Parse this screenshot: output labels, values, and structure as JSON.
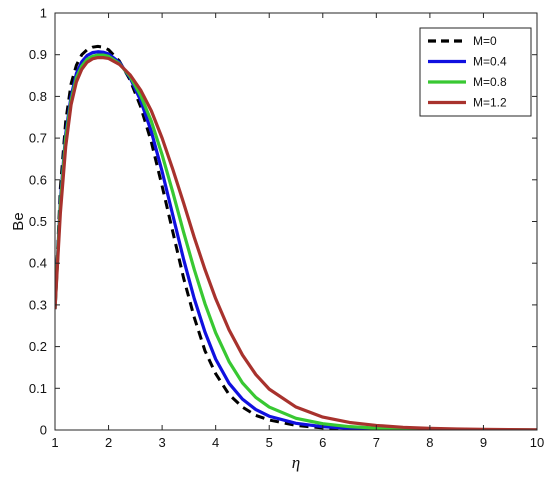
{
  "chart_data": {
    "type": "line",
    "title": "",
    "xlabel": "η",
    "ylabel": "Be",
    "xlim": [
      1,
      10
    ],
    "ylim": [
      0,
      1
    ],
    "xticks": [
      1,
      2,
      3,
      4,
      5,
      6,
      7,
      8,
      9,
      10
    ],
    "yticks": [
      0,
      0.1,
      0.2,
      0.3,
      0.4,
      0.5,
      0.6,
      0.7,
      0.8,
      0.9,
      1
    ],
    "ytick_labels": [
      "0",
      "0.1",
      "0.2",
      "0.3",
      "0.4",
      "0.5",
      "0.6",
      "0.7",
      "0.8",
      "0.9",
      "1"
    ],
    "grid": false,
    "legend_position": "top-right",
    "x": [
      1.0,
      1.1,
      1.2,
      1.3,
      1.4,
      1.5,
      1.6,
      1.7,
      1.8,
      1.9,
      2.0,
      2.2,
      2.4,
      2.6,
      2.8,
      3.0,
      3.2,
      3.4,
      3.6,
      3.8,
      4.0,
      4.25,
      4.5,
      4.75,
      5.0,
      5.5,
      6.0,
      6.5,
      7.0,
      7.5,
      8.0,
      8.5,
      9.0,
      9.5,
      10.0
    ],
    "series": [
      {
        "name": "M=0",
        "color": "#000000",
        "dash": "dashed",
        "values": [
          0.29,
          0.58,
          0.74,
          0.83,
          0.875,
          0.9,
          0.912,
          0.918,
          0.92,
          0.918,
          0.912,
          0.885,
          0.84,
          0.775,
          0.69,
          0.585,
          0.475,
          0.365,
          0.27,
          0.19,
          0.135,
          0.085,
          0.055,
          0.035,
          0.024,
          0.011,
          0.005,
          0.0025,
          0.0012,
          0.0006,
          0.0003,
          0.0002,
          0.0001,
          0.0,
          0.0
        ]
      },
      {
        "name": "M=0.4",
        "color": "#1010e0",
        "dash": "solid",
        "values": [
          0.29,
          0.55,
          0.71,
          0.8,
          0.855,
          0.883,
          0.898,
          0.905,
          0.907,
          0.906,
          0.902,
          0.882,
          0.845,
          0.79,
          0.715,
          0.62,
          0.515,
          0.41,
          0.315,
          0.235,
          0.17,
          0.112,
          0.074,
          0.049,
          0.033,
          0.016,
          0.008,
          0.004,
          0.002,
          0.001,
          0.0005,
          0.0003,
          0.0002,
          0.0001,
          0.0
        ]
      },
      {
        "name": "M=0.8",
        "color": "#38c832",
        "dash": "solid",
        "values": [
          0.29,
          0.54,
          0.7,
          0.79,
          0.845,
          0.873,
          0.889,
          0.896,
          0.899,
          0.899,
          0.896,
          0.879,
          0.848,
          0.802,
          0.74,
          0.66,
          0.57,
          0.475,
          0.385,
          0.303,
          0.233,
          0.164,
          0.113,
          0.078,
          0.055,
          0.028,
          0.015,
          0.008,
          0.0045,
          0.0025,
          0.0014,
          0.0008,
          0.0005,
          0.0003,
          0.0002
        ]
      },
      {
        "name": "M=1.2",
        "color": "#a8322d",
        "dash": "solid",
        "values": [
          0.29,
          0.52,
          0.68,
          0.78,
          0.835,
          0.865,
          0.882,
          0.89,
          0.893,
          0.893,
          0.891,
          0.877,
          0.852,
          0.815,
          0.765,
          0.7,
          0.625,
          0.545,
          0.462,
          0.385,
          0.315,
          0.24,
          0.18,
          0.133,
          0.098,
          0.055,
          0.031,
          0.018,
          0.011,
          0.0065,
          0.004,
          0.0025,
          0.0015,
          0.0009,
          0.0005
        ]
      }
    ]
  }
}
